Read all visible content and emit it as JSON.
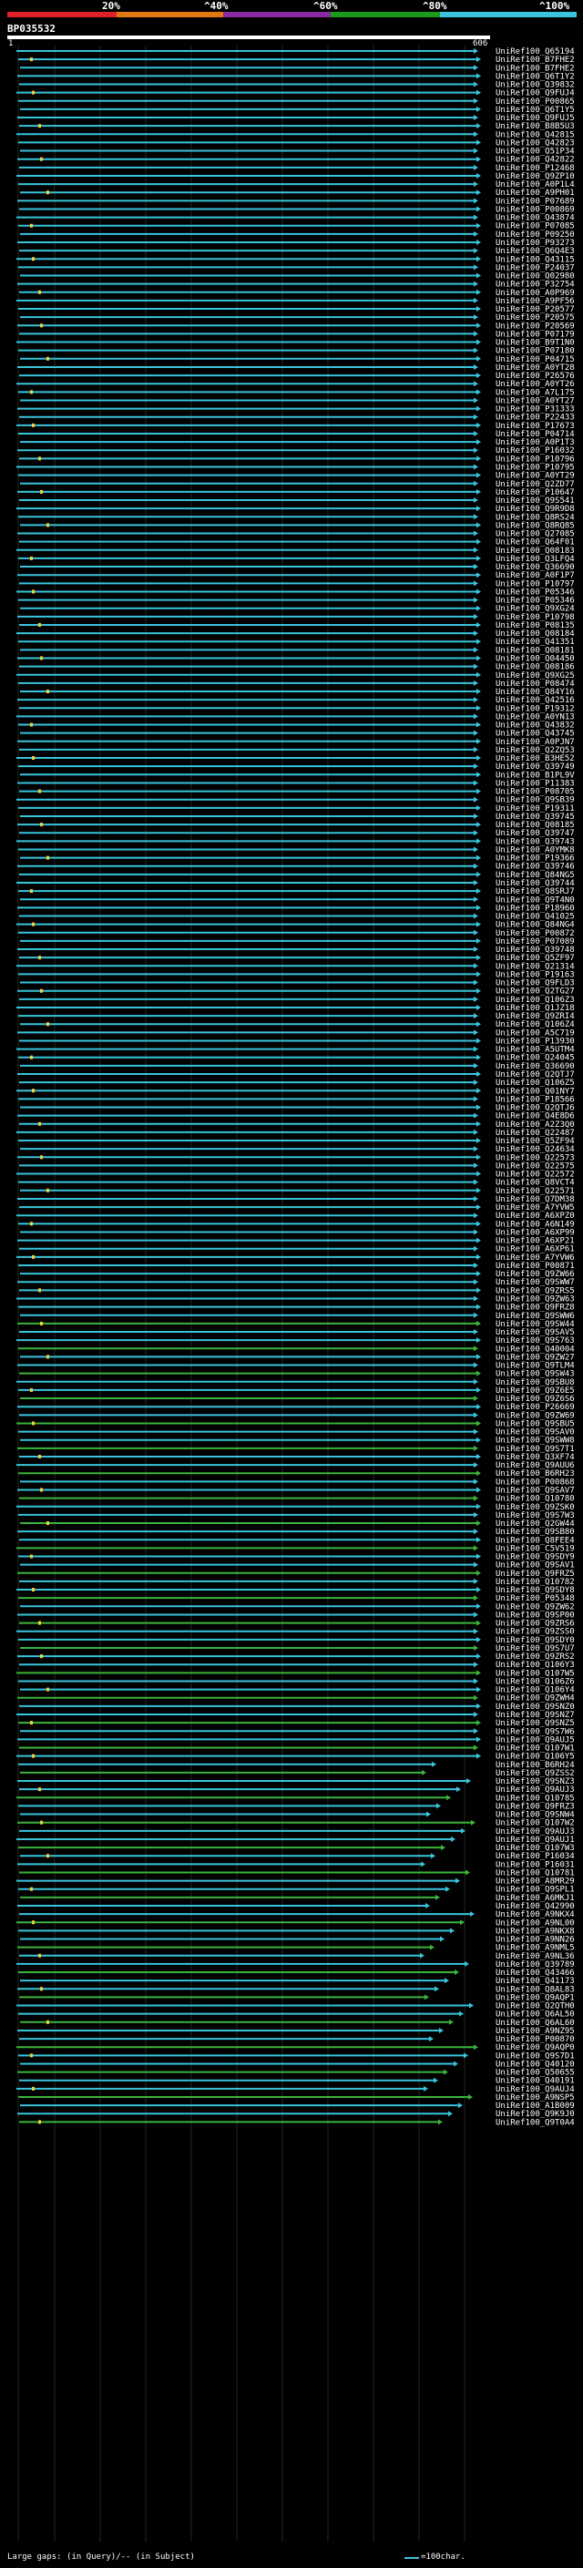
{
  "header": {
    "scale_labels": [
      "20%",
      "^40%",
      "^60%",
      "^80%",
      "^100%"
    ],
    "scale_colors": [
      "#e0202a",
      "#e07a10",
      "#8a2aa0",
      "#1a9a1a",
      "#39c4dc"
    ],
    "query_id": "BP035532",
    "query_start": "1",
    "query_end": "606"
  },
  "colors": {
    "high_identity": "#39c4dc",
    "mid_identity": "#3cb43c",
    "gap_marker": "#f2d23a"
  },
  "hits": [
    "UniRef100_Q65194",
    "UniRef100_B7FHE2",
    "UniRef100_B7FHE2",
    "UniRef100_Q6T1Y2",
    "UniRef100_Q39832",
    "UniRef100_Q9FUJ4",
    "UniRef100_P00865",
    "UniRef100_Q6T1Y5",
    "UniRef100_Q9FUJ5",
    "UniRef100_B8B5U3",
    "UniRef100_Q42815",
    "UniRef100_Q42823",
    "UniRef100_Q51P34",
    "UniRef100_Q42822",
    "UniRef100_P12468",
    "UniRef100_Q9ZP10",
    "UniRef100_A0P1L4",
    "UniRef100_A9PH01",
    "UniRef100_P07689",
    "UniRef100_P00869",
    "UniRef100_Q43874",
    "UniRef100_P07085",
    "UniRef100_P09250",
    "UniRef100_P93273",
    "UniRef100_Q6Q4E3",
    "UniRef100_Q43115",
    "UniRef100_P24037",
    "UniRef100_Q02980",
    "UniRef100_P32754",
    "UniRef100_A0P969",
    "UniRef100_A9PF56",
    "UniRef100_P20577",
    "UniRef100_P20575",
    "UniRef100_P20569",
    "UniRef100_P07179",
    "UniRef100_B9T1N0",
    "UniRef100_P07180",
    "UniRef100_P04715",
    "UniRef100_A0YT28",
    "UniRef100_P26576",
    "UniRef100_A0YT26",
    "UniRef100_A7L175",
    "UniRef100_A0YT27",
    "UniRef100_P31333",
    "UniRef100_P22433",
    "UniRef100_P17673",
    "UniRef100_P04714",
    "UniRef100_A0P1T3",
    "UniRef100_P16032",
    "UniRef100_P10796",
    "UniRef100_P10795",
    "UniRef100_A0YT29",
    "UniRef100_Q2ZD77",
    "UniRef100_P10647",
    "UniRef100_Q9S541",
    "UniRef100_Q9R9D8",
    "UniRef100_Q8RS24",
    "UniRef100_Q8RQ85",
    "UniRef100_Q27085",
    "UniRef100_Q64F01",
    "UniRef100_Q08183",
    "UniRef100_Q3LFQ4",
    "UniRef100_Q36690",
    "UniRef100_A0F1P7",
    "UniRef100_P10797",
    "UniRef100_P05346",
    "UniRef100_P05346",
    "UniRef100_Q9XG24",
    "UniRef100_P10798",
    "UniRef100_P08135",
    "UniRef100_Q08184",
    "UniRef100_Q41351",
    "UniRef100_Q08181",
    "UniRef100_Q04450",
    "UniRef100_Q08186",
    "UniRef100_Q9XG25",
    "UniRef100_P08474",
    "UniRef100_Q84Y16",
    "UniRef100_Q42516",
    "UniRef100_P19312",
    "UniRef100_A0YN13",
    "UniRef100_Q43832",
    "UniRef100_Q43745",
    "UniRef100_A0PJN7",
    "UniRef100_Q2ZQ53",
    "UniRef100_B3HE52",
    "UniRef100_Q39749",
    "UniRef100_B1PL9V",
    "UniRef100_P11383",
    "UniRef100_P08705",
    "UniRef100_Q9SB39",
    "UniRef100_P19311",
    "UniRef100_Q39745",
    "UniRef100_Q08185",
    "UniRef100_Q39747",
    "UniRef100_Q39743",
    "UniRef100_A0YMK8",
    "UniRef100_P19366",
    "UniRef100_Q39746",
    "UniRef100_Q84NG5",
    "UniRef100_Q39744",
    "UniRef100_Q8SRJ7",
    "UniRef100_Q9T4N0",
    "UniRef100_P18960",
    "UniRef100_Q41025",
    "UniRef100_Q84NG4",
    "UniRef100_P00872",
    "UniRef100_P07089",
    "UniRef100_Q39748",
    "UniRef100_Q5ZF97",
    "UniRef100_Q21314",
    "UniRef100_P19163",
    "UniRef100_Q9FLD3",
    "UniRef100_Q2TG27",
    "UniRef100_Q106Z3",
    "UniRef100_Q1JZ18",
    "UniRef100_Q9ZRI4",
    "UniRef100_Q106Z4",
    "UniRef100_A5C719",
    "UniRef100_P13930",
    "UniRef100_A5UTM4",
    "UniRef100_Q24045",
    "UniRef100_Q36690",
    "UniRef100_Q2QTJ7",
    "UniRef100_Q106Z5",
    "UniRef100_Q01NY7",
    "UniRef100_P18566",
    "UniRef100_Q2QTJ6",
    "UniRef100_Q4E8D6",
    "UniRef100_A2Z3Q0",
    "UniRef100_Q22487",
    "UniRef100_Q5ZF94",
    "UniRef100_Q24634",
    "UniRef100_Q22573",
    "UniRef100_Q22575",
    "UniRef100_Q22572",
    "UniRef100_Q8VCT4",
    "UniRef100_Q22571",
    "UniRef100_Q7DM38",
    "UniRef100_A7YVW5",
    "UniRef100_A6XPZ0",
    "UniRef100_A6N149",
    "UniRef100_A6XP99",
    "UniRef100_A6XP21",
    "UniRef100_A6XP61",
    "UniRef100_A7YVW6",
    "UniRef100_P00871",
    "UniRef100_Q9ZW66",
    "UniRef100_Q9SWW7",
    "UniRef100_Q9ZRS5",
    "UniRef100_Q9ZW63",
    "UniRef100_Q9FRZ8",
    "UniRef100_Q9SWW6",
    "UniRef100_Q9SW44",
    "UniRef100_Q9SAV5",
    "UniRef100_Q9S763",
    "UniRef100_Q40004",
    "UniRef100_Q9ZW27",
    "UniRef100_Q9TLM4",
    "UniRef100_Q9SW43",
    "UniRef100_Q9SBU8",
    "UniRef100_Q9Z6E5",
    "UniRef100_Q9Z6S6",
    "UniRef100_P26669",
    "UniRef100_Q9ZW69",
    "UniRef100_Q9SBU5",
    "UniRef100_Q9SAV0",
    "UniRef100_Q9SWW8",
    "UniRef100_Q9S7T1",
    "UniRef100_Q3XF74",
    "UniRef100_Q9AUU6",
    "UniRef100_B6RH23",
    "UniRef100_P00868",
    "UniRef100_Q9SAV7",
    "UniRef100_Q10780",
    "UniRef100_Q9ZSK0",
    "UniRef100_Q9S7W3",
    "UniRef100_Q2GW44",
    "UniRef100_Q9SB80",
    "UniRef100_Q8FEE4",
    "UniRef100_C5V519",
    "UniRef100_Q9SDY9",
    "UniRef100_Q9SAV1",
    "UniRef100_Q9FRZ5",
    "UniRef100_Q10782",
    "UniRef100_Q9SDY8",
    "UniRef100_P05348",
    "UniRef100_Q9ZW62",
    "UniRef100_Q9SP00",
    "UniRef100_Q9ZRS6",
    "UniRef100_Q9ZSS0",
    "UniRef100_Q9SDY0",
    "UniRef100_Q9S7U7",
    "UniRef100_Q9ZRS2",
    "UniRef100_Q106Y3",
    "UniRef100_Q107W5",
    "UniRef100_Q106Z6",
    "UniRef100_Q106Y4",
    "UniRef100_Q9ZWH4",
    "UniRef100_Q9SNZ0",
    "UniRef100_Q9SNZ7",
    "UniRef100_Q9SNZ5",
    "UniRef100_Q9S7W6",
    "UniRef100_Q9AUJ5",
    "UniRef100_Q107W1",
    "UniRef100_Q106Y5",
    "UniRef100_B6RH24",
    "UniRef100_Q9ZSS2",
    "UniRef100_Q9SNZ3",
    "UniRef100_Q9AUJ3",
    "UniRef100_Q10785",
    "UniRef100_Q9FRZ3",
    "UniRef100_Q9SNW4",
    "UniRef100_Q107W2",
    "UniRef100_Q9AUJ3",
    "UniRef100_Q9AUJ1",
    "UniRef100_Q107W3",
    "UniRef100_P16034",
    "UniRef100_P16031",
    "UniRef100_Q10781",
    "UniRef100_A8MR29",
    "UniRef100_Q9SPL1",
    "UniRef100_A6MKJ1",
    "UniRef100_Q42990",
    "UniRef100_A9NKX4",
    "UniRef100_A9NL00",
    "UniRef100_A9NKX8",
    "UniRef100_A9NN26",
    "UniRef100_A9NML5",
    "UniRef100_A9NL36",
    "UniRef100_Q39789",
    "UniRef100_Q43466",
    "UniRef100_Q41173",
    "UniRef100_Q8AL83",
    "UniRef100_Q9AQP1",
    "UniRef100_Q2QTH0",
    "UniRef100_Q6AL50",
    "UniRef100_Q6AL60",
    "UniRef100_A9NZ95",
    "UniRef100_P00870",
    "UniRef100_Q9AQP0",
    "UniRef100_Q9S7D1",
    "UniRef100_Q40120",
    "UniRef100_Q50655",
    "UniRef100_Q40191",
    "UniRef100_Q9AUJ4",
    "UniRef100_A9NSP5",
    "UniRef100_A1B009",
    "UniRef100_Q9K9J0",
    "UniRef100_Q9T0A4"
  ],
  "footer": {
    "gap_legend": "Large gaps:  (in Query)/-- (in Subject)",
    "scale_key": "=100char."
  }
}
